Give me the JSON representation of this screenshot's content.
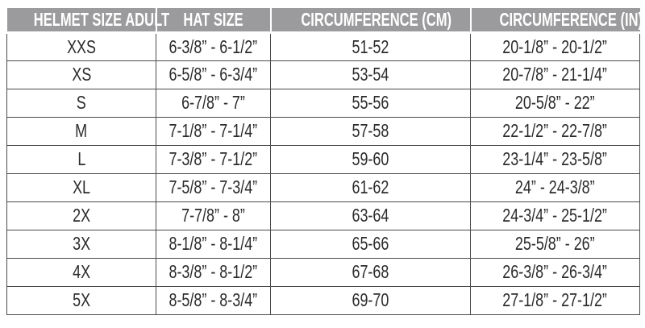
{
  "colors": {
    "header_bg": "#9b9b9d",
    "header_text": "#ffffff",
    "body_text": "#2b2b2d",
    "border": "#4b4b4d",
    "row_bg": "#ffffff",
    "page_bg": "#ffffff"
  },
  "chart_data": {
    "type": "table",
    "columns": [
      "HELMET SIZE ADULT",
      "HAT SIZE",
      "CIRCUMFERENCE (CM)",
      "CIRCUMFERENCE (IN)"
    ],
    "rows": [
      [
        "XXS",
        "6-3/8” - 6-1/2”",
        "51-52",
        "20-1/8” - 20-1/2”"
      ],
      [
        "XS",
        "6-5/8” - 6-3/4”",
        "53-54",
        "20-7/8” - 21-1/4”"
      ],
      [
        "S",
        "6-7/8” - 7”",
        "55-56",
        "20-5/8” - 22”"
      ],
      [
        "M",
        "7-1/8” - 7-1/4”",
        "57-58",
        "22-1/2” - 22-7/8”"
      ],
      [
        "L",
        "7-3/8” - 7-1/2”",
        "59-60",
        "23-1/4” - 23-5/8”"
      ],
      [
        "XL",
        "7-5/8” - 7-3/4”",
        "61-62",
        "24” - 24-3/8”"
      ],
      [
        "2X",
        "7-7/8” - 8”",
        "63-64",
        "24-3/4” - 25-1/2”"
      ],
      [
        "3X",
        "8-1/8” - 8-1/4”",
        "65-66",
        "25-5/8” - 26”"
      ],
      [
        "4X",
        "8-3/8” - 8-1/2”",
        "67-68",
        "26-3/8” - 26-3/4”"
      ],
      [
        "5X",
        "8-5/8” - 8-3/4”",
        "69-70",
        "27-1/8” - 27-1/2”"
      ]
    ]
  }
}
